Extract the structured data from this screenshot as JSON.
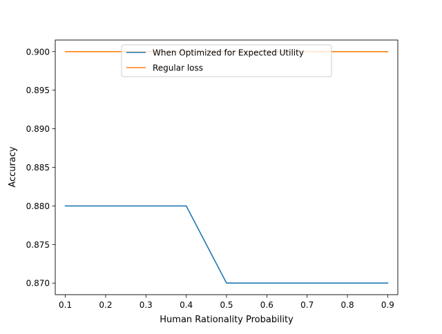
{
  "chart_data": {
    "type": "line",
    "title": "",
    "xlabel": "Human Rationality Probability",
    "ylabel": "Accuracy",
    "x": [
      0.1,
      0.2,
      0.3,
      0.4,
      0.5,
      0.6,
      0.7,
      0.8,
      0.9
    ],
    "xlim": [
      0.075,
      0.925
    ],
    "ylim": [
      0.8685,
      0.9015
    ],
    "xticks": [
      0.1,
      0.2,
      0.3,
      0.4,
      0.5,
      0.6,
      0.7,
      0.8,
      0.9
    ],
    "xtick_labels": [
      "0.1",
      "0.2",
      "0.3",
      "0.4",
      "0.5",
      "0.6",
      "0.7",
      "0.8",
      "0.9"
    ],
    "yticks": [
      0.87,
      0.875,
      0.88,
      0.885,
      0.89,
      0.895,
      0.9
    ],
    "ytick_labels": [
      "0.870",
      "0.875",
      "0.880",
      "0.885",
      "0.890",
      "0.895",
      "0.900"
    ],
    "grid": false,
    "legend_position": "top-center",
    "series": [
      {
        "name": "When Optimized for Expected Utility",
        "color": "#1f77b4",
        "values": [
          0.88,
          0.88,
          0.88,
          0.88,
          0.87,
          0.87,
          0.87,
          0.87,
          0.87
        ]
      },
      {
        "name": "Regular loss",
        "color": "#ff7f0e",
        "values": [
          0.9,
          0.9,
          0.9,
          0.9,
          0.9,
          0.9,
          0.9,
          0.9,
          0.9
        ]
      }
    ]
  }
}
